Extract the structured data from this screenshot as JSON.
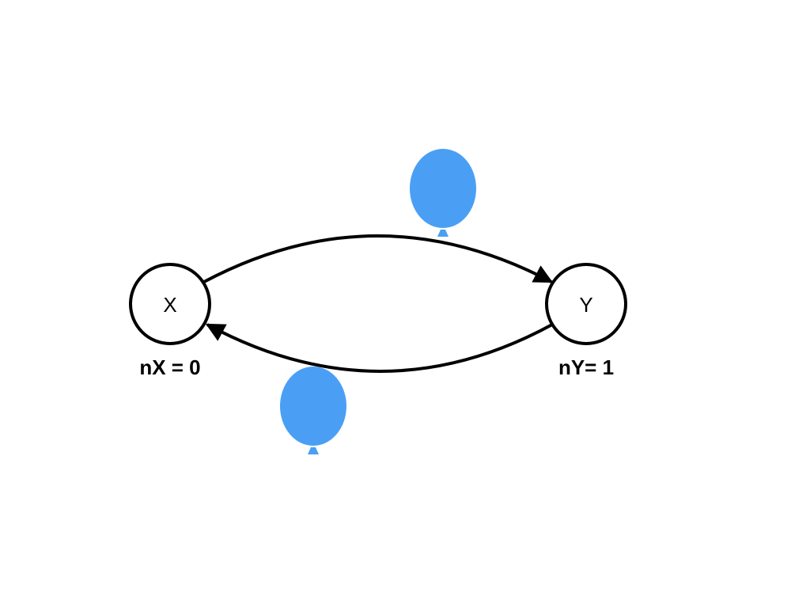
{
  "nodes": {
    "x": {
      "label": "X",
      "count_label": "nX = 0"
    },
    "y": {
      "label": "Y",
      "count_label": "nY= 1"
    }
  },
  "edges": [
    {
      "from": "X",
      "to": "Y",
      "token": "balloon"
    },
    {
      "from": "Y",
      "to": "X",
      "token": "balloon"
    }
  ],
  "colors": {
    "stroke": "#000000",
    "balloon": "#4A9FF5"
  },
  "icons": {
    "token": "balloon-icon"
  }
}
